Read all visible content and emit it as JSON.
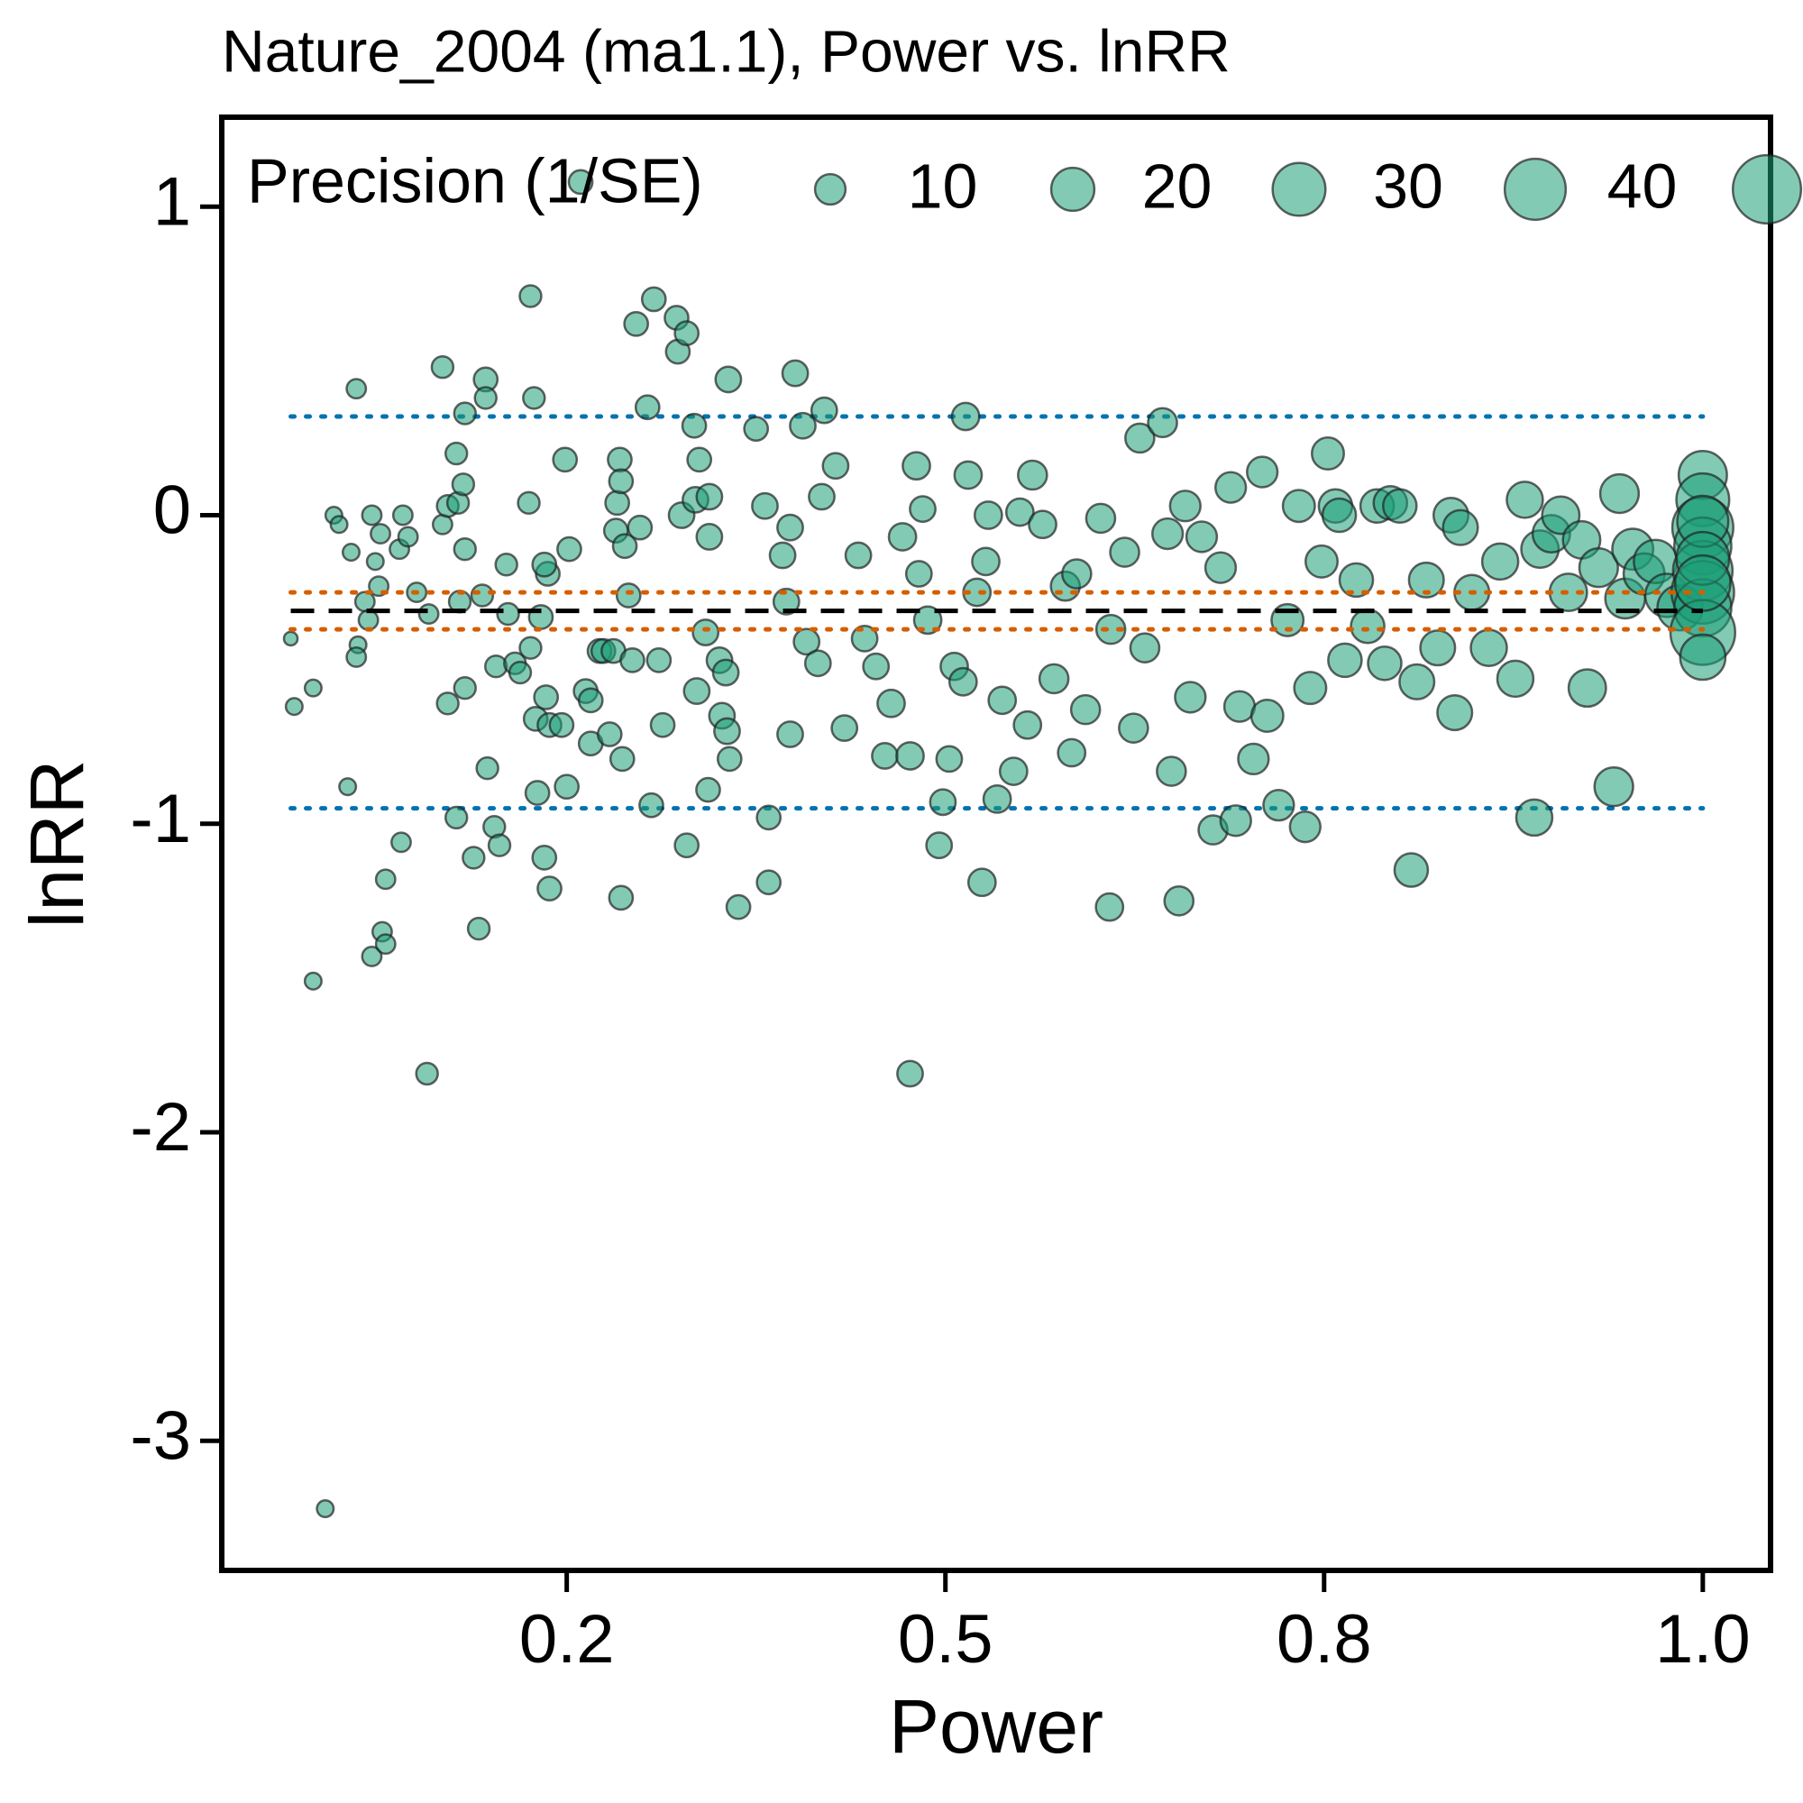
{
  "chart_data": {
    "type": "bubble",
    "title": "Nature_2004 (ma1.1), Power vs. lnRR",
    "x_label": "Power",
    "y_label": "lnRR",
    "xlim": [
      0,
      1.04
    ],
    "xticks": [
      0.2,
      0.5,
      0.8,
      {
        "value": 1,
        "label": "1.0"
      }
    ],
    "ylim": [
      -3.42,
      1.29
    ],
    "yticks": [
      -3,
      -2,
      -1,
      0,
      1
    ],
    "color": "#1b9e77",
    "size_legend": {
      "title": "Precision (1/SE)",
      "values": [
        10,
        20,
        30,
        40,
        50
      ],
      "labels": [
        "10",
        "20",
        "30",
        "40",
        null
      ]
    },
    "reference_lines": [
      {
        "value": 0.32,
        "color": "#0072b2",
        "style": "dotted"
      },
      {
        "value": -0.95,
        "color": "#0072b2",
        "style": "dotted"
      },
      {
        "value": -0.25,
        "color": "#d55e00",
        "style": "dotted"
      },
      {
        "value": -0.37,
        "color": "#d55e00",
        "style": "dotted"
      },
      {
        "value": -0.31,
        "color": "#000000",
        "style": "dashed"
      }
    ],
    "x": [
      0.04,
      0.042,
      0.06,
      0.053,
      0.053,
      0.065,
      0.068,
      0.073,
      0.078,
      0.075,
      0.079,
      0.078,
      0.083,
      0.085,
      0.087,
      0.089,
      0.091,
      0.092,
      0.087,
      0.093,
      0.095,
      0.095,
      0.104,
      0.105,
      0.103,
      0.108,
      0.113,
      0.119,
      0.12,
      0.128,
      0.128,
      0.131,
      0.131,
      0.136,
      0.136,
      0.137,
      0.138,
      0.141,
      0.141,
      0.14,
      0.141,
      0.146,
      0.149,
      0.153,
      0.153,
      0.154,
      0.151,
      0.158,
      0.161,
      0.159,
      0.165,
      0.166,
      0.17,
      0.173,
      0.178,
      0.179,
      0.181,
      0.179,
      0.183,
      0.182,
      0.185,
      0.187,
      0.188,
      0.19,
      0.189,
      0.187,
      0.19,
      0.197,
      0.199,
      0.2,
      0.202,
      0.211,
      0.215,
      0.219,
      0.219,
      0.226,
      0.229,
      0.234,
      0.237,
      0.239,
      0.24,
      0.242,
      0.243,
      0.243,
      0.244,
      0.246,
      0.249,
      0.252,
      0.255,
      0.258,
      0.264,
      0.267,
      0.269,
      0.273,
      0.276,
      0.287,
      0.288,
      0.291,
      0.295,
      0.295,
      0.301,
      0.302,
      0.303,
      0.305,
      0.31,
      0.312,
      0.313,
      0.313,
      0.321,
      0.323,
      0.326,
      0.327,
      0.328,
      0.329,
      0.336,
      0.35,
      0.357,
      0.36,
      0.36,
      0.371,
      0.374,
      0.377,
      0.377,
      0.381,
      0.387,
      0.39,
      0.399,
      0.402,
      0.404,
      0.413,
      0.42,
      0.431,
      0.436,
      0.445,
      0.452,
      0.457,
      0.466,
      0.472,
      0.472,
      0.477,
      0.479,
      0.482,
      0.486,
      0.495,
      0.498,
      0.503,
      0.507,
      0.514,
      0.516,
      0.518,
      0.525,
      0.529,
      0.532,
      0.534,
      0.541,
      0.545,
      0.554,
      0.559,
      0.565,
      0.569,
      0.577,
      0.586,
      0.595,
      0.6,
      0.604,
      0.611,
      0.623,
      0.63,
      0.631,
      0.642,
      0.649,
      0.654,
      0.658,
      0.672,
      0.676,
      0.679,
      0.685,
      0.69,
      0.694,
      0.703,
      0.712,
      0.718,
      0.726,
      0.73,
      0.733,
      0.744,
      0.751,
      0.755,
      0.764,
      0.771,
      0.78,
      0.785,
      0.789,
      0.798,
      0.802,
      0.806,
      0.808,
      0.811,
      0.817,
      0.823,
      0.828,
      0.832,
      0.835,
      0.84,
      0.846,
      0.849,
      0.854,
      0.86,
      0.867,
      0.869,
      0.872,
      0.878,
      0.887,
      0.893,
      0.901,
      0.906,
      0.911,
      0.914,
      0.92,
      0.925,
      0.929,
      0.936,
      0.939,
      0.945,
      0.953,
      0.956,
      0.959,
      0.963,
      0.969,
      0.975,
      0.981,
      0.988,
      1,
      1,
      1,
      1,
      1,
      1,
      1,
      1,
      1,
      1,
      1,
      1
    ],
    "values": [
      -0.4,
      -0.62,
      -3.22,
      -1.51,
      -0.56,
      0,
      -0.03,
      -0.88,
      0.41,
      -0.12,
      -0.42,
      -0.46,
      -0.28,
      -0.34,
      0,
      -0.15,
      -0.23,
      -0.06,
      -1.43,
      -1.35,
      -1.39,
      -1.18,
      -1.06,
      0,
      -0.11,
      -0.07,
      -0.25,
      -1.81,
      -0.32,
      0.48,
      -0.03,
      -0.61,
      0.03,
      -0.98,
      0.2,
      0.04,
      -0.28,
      0.33,
      -0.56,
      0.1,
      -0.11,
      -1.11,
      -1.34,
      0.44,
      0.38,
      -0.82,
      -0.26,
      -1.01,
      -1.07,
      -0.49,
      -0.16,
      -0.32,
      -0.48,
      -0.51,
      0.04,
      0.71,
      0.38,
      -0.43,
      -0.9,
      -0.66,
      -0.33,
      -1.11,
      -0.59,
      -1.21,
      -0.19,
      -0.16,
      -0.68,
      -0.68,
      0.18,
      -0.88,
      -0.11,
      1.08,
      -0.57,
      -0.74,
      -0.6,
      -0.44,
      -0.44,
      -0.71,
      -0.44,
      -0.05,
      0.04,
      0.18,
      0.11,
      -1.24,
      -0.79,
      -0.1,
      -0.26,
      -0.47,
      0.62,
      -0.04,
      0.35,
      -0.94,
      0.7,
      -0.47,
      -0.68,
      0.64,
      0.53,
      0,
      0.59,
      -1.07,
      0.29,
      0.05,
      -0.57,
      0.18,
      -0.38,
      -0.89,
      0.06,
      -0.07,
      -0.47,
      -0.65,
      -0.51,
      -0.7,
      0.44,
      -0.79,
      -1.27,
      0.28,
      0.03,
      -0.98,
      -1.19,
      -0.13,
      -0.28,
      -0.04,
      -0.71,
      0.46,
      0.29,
      -0.41,
      -0.48,
      0.06,
      0.34,
      0.16,
      -0.69,
      -0.13,
      -0.4,
      -0.49,
      -0.78,
      -0.61,
      -0.07,
      -0.78,
      -1.81,
      0.16,
      -0.19,
      0.02,
      -0.34,
      -1.07,
      -0.93,
      -0.79,
      -0.49,
      -0.54,
      0.32,
      0.13,
      -0.25,
      -1.19,
      -0.15,
      0,
      -0.92,
      -0.6,
      -0.83,
      0.01,
      -0.68,
      0.13,
      -0.03,
      -0.53,
      -0.23,
      -0.77,
      -0.19,
      -0.63,
      -0.01,
      -1.27,
      -0.37,
      -0.12,
      -0.69,
      0.25,
      -0.43,
      0.3,
      -0.06,
      -0.83,
      -1.25,
      0.03,
      -0.59,
      -0.07,
      -1.02,
      -0.17,
      0.09,
      -0.99,
      -0.62,
      -0.79,
      0.14,
      -0.65,
      -0.94,
      -0.34,
      0.03,
      -1.01,
      -0.56,
      -0.15,
      0.2,
      0.03,
      0,
      -0.47,
      -0.21,
      -0.36,
      0.03,
      -0.48,
      0.04,
      0.03,
      -1.15,
      -0.54,
      -0.21,
      -0.43,
      0,
      -0.64,
      -0.04,
      -0.25,
      -0.43,
      -0.15,
      -0.53,
      0.05,
      -0.98,
      -0.11,
      -0.06,
      0,
      -0.25,
      -0.08,
      -0.56,
      -0.17,
      -0.88,
      0.07,
      -0.27,
      -0.11,
      -0.19,
      -0.15,
      -0.26,
      -0.3,
      0.13,
      0.05,
      -0.04,
      -0.1,
      -0.18,
      -0.25,
      -0.3,
      -0.38,
      -0.46,
      -0.02,
      -0.14,
      -0.22
    ],
    "sizes": [
      2,
      3,
      3,
      3,
      3,
      3,
      3,
      3,
      4,
      3,
      3,
      4,
      4,
      4,
      4,
      3,
      4,
      4,
      4,
      4,
      4,
      4,
      4,
      4,
      4,
      4,
      4,
      5,
      4,
      5,
      4,
      5,
      5,
      5,
      5,
      5,
      5,
      5,
      5,
      5,
      5,
      5,
      5,
      6,
      5,
      5,
      5,
      5,
      5,
      5,
      5,
      5,
      5,
      5,
      5,
      5,
      5,
      5,
      6,
      6,
      6,
      6,
      6,
      6,
      6,
      6,
      6,
      6,
      6,
      6,
      6,
      6,
      6,
      6,
      6,
      6,
      6,
      6,
      6,
      6,
      6,
      6,
      6,
      6,
      6,
      6,
      6,
      6,
      6,
      6,
      6,
      6,
      6,
      6,
      6,
      6,
      6,
      7,
      6,
      6,
      6,
      7,
      7,
      6,
      7,
      6,
      7,
      7,
      7,
      7,
      7,
      7,
      7,
      6,
      6,
      6,
      7,
      6,
      6,
      7,
      7,
      7,
      7,
      7,
      7,
      7,
      7,
      7,
      7,
      7,
      7,
      7,
      7,
      7,
      7,
      8,
      8,
      8,
      7,
      8,
      7,
      7,
      8,
      7,
      7,
      7,
      8,
      8,
      8,
      8,
      8,
      8,
      8,
      8,
      8,
      8,
      8,
      8,
      8,
      9,
      8,
      9,
      9,
      8,
      9,
      9,
      9,
      8,
      9,
      9,
      9,
      9,
      9,
      9,
      10,
      9,
      9,
      10,
      10,
      10,
      9,
      10,
      10,
      10,
      10,
      10,
      10,
      11,
      10,
      11,
      11,
      10,
      11,
      11,
      11,
      12,
      12,
      12,
      12,
      12,
      12,
      12,
      12,
      12,
      12,
      13,
      13,
      13,
      13,
      13,
      13,
      13,
      14,
      14,
      14,
      14,
      14,
      15,
      15,
      15,
      15,
      15,
      15,
      16,
      16,
      16,
      17,
      18,
      18,
      20,
      20,
      22,
      25,
      30,
      40,
      35,
      38,
      42,
      35,
      45,
      22,
      28,
      30,
      33
    ]
  }
}
